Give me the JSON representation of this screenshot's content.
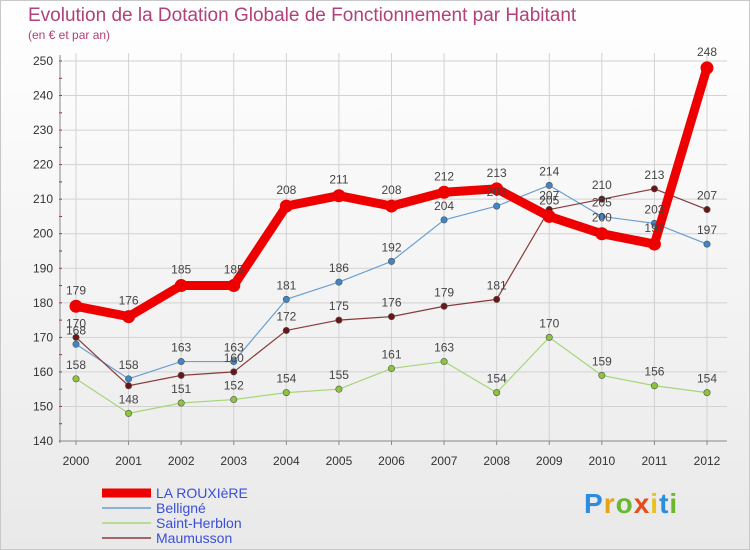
{
  "title": "Evolution de la Dotation Globale de Fonctionnement par Habitant",
  "subtitle": "(en € et par an)",
  "logo": {
    "chars": [
      "P",
      "r",
      "o",
      "x",
      "i",
      "t",
      "i"
    ],
    "colors": [
      "#2b8de0",
      "#e8a21a",
      "#6ab82e",
      "#e84c1a",
      "#e8c31a",
      "#2b8de0",
      "#6ab82e"
    ]
  },
  "chart_data": {
    "type": "line",
    "title": "Evolution de la Dotation Globale de Fonctionnement par Habitant",
    "subtitle": "(en € et par an)",
    "xlabel": "",
    "ylabel": "",
    "ylim": [
      140,
      250
    ],
    "yticks": [
      140,
      150,
      160,
      170,
      180,
      190,
      200,
      210,
      220,
      230,
      240,
      250
    ],
    "x": [
      2000,
      2001,
      2002,
      2003,
      2004,
      2005,
      2006,
      2007,
      2008,
      2009,
      2010,
      2011,
      2012
    ],
    "series": [
      {
        "name": "Belligné",
        "color": "#6a9fd0",
        "dot": "#3f86c8",
        "width": 1.2,
        "r": 3.2,
        "values": [
          168,
          158,
          163,
          163,
          181,
          186,
          192,
          204,
          208,
          214,
          205,
          203,
          197
        ],
        "labels": [
          "168",
          "158",
          "163",
          "163",
          "181",
          "186",
          "192",
          "204",
          "208",
          "214",
          "205",
          "203",
          "197"
        ]
      },
      {
        "name": "Saint-Herblon",
        "color": "#a6d67a",
        "dot": "#8cc43c",
        "width": 1.2,
        "r": 3.2,
        "values": [
          158,
          148,
          151,
          152,
          154,
          155,
          161,
          163,
          154,
          170,
          159,
          156,
          154
        ],
        "labels": [
          "158",
          "148",
          "151",
          "152",
          "154",
          "155",
          "161",
          "163",
          "154",
          "170",
          "159",
          "156",
          "154"
        ]
      },
      {
        "name": "Maumusson",
        "color": "#8a3a3a",
        "dot": "#6b1616",
        "width": 1.2,
        "r": 3.2,
        "values": [
          170,
          156,
          159,
          160,
          172,
          175,
          176,
          179,
          181,
          207,
          210,
          213,
          207
        ],
        "labels": [
          "170",
          "",
          "",
          "160",
          "172",
          "175",
          "176",
          "179",
          "181",
          "207",
          "210",
          "213",
          "207"
        ]
      },
      {
        "name": "LA ROUXIèRE",
        "color": "#ee0000",
        "dot": "#ee0000",
        "width": 9,
        "r": 6.5,
        "values": [
          179,
          176,
          185,
          185,
          208,
          211,
          208,
          212,
          213,
          205,
          200,
          197,
          248
        ],
        "labels": [
          "179",
          "176",
          "185",
          "185",
          "208",
          "211",
          "208",
          "212",
          "213",
          "205",
          "200",
          "197",
          "248"
        ]
      }
    ],
    "legend": {
      "position": "bottom-left",
      "entries": [
        "LA ROUXIèRE",
        "Belligné",
        "Saint-Herblon",
        "Maumusson"
      ]
    }
  }
}
